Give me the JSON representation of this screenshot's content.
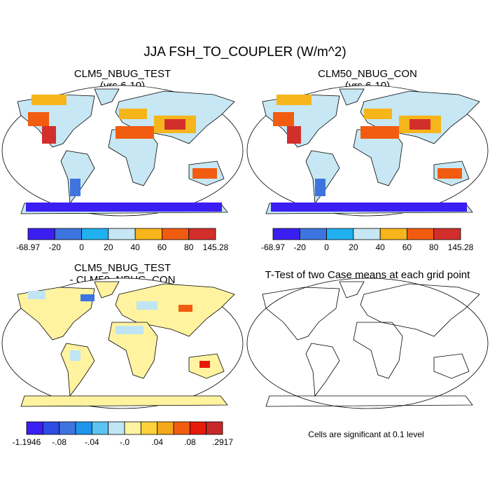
{
  "title": "JJA FSH_TO_COUPLER (W/m^2)",
  "panels": [
    {
      "title": "CLM5_NBUG_TEST",
      "subtitle": "(yrs 6-10)",
      "colorbar": {
        "labels": [
          "-68.97",
          "-20",
          "0",
          "20",
          "40",
          "60",
          "80",
          "145.28"
        ],
        "colors": [
          "#3b1ff2",
          "#3d74df",
          "#20b0f0",
          "#c6e7f3",
          "#f6b51b",
          "#f25c10",
          "#d22f2c"
        ]
      }
    },
    {
      "title": "CLM50_NBUG_CON",
      "subtitle": "(yrs 6-10)",
      "colorbar": {
        "labels": [
          "-68.97",
          "-20",
          "0",
          "20",
          "40",
          "60",
          "80",
          "145.28"
        ],
        "colors": [
          "#3b1ff2",
          "#3d74df",
          "#20b0f0",
          "#c6e7f3",
          "#f6b51b",
          "#f25c10",
          "#d22f2c"
        ]
      }
    },
    {
      "title": "CLM5_NBUG_TEST",
      "subtitle": "- CLM50_NBUG_CON",
      "colorbar": {
        "labels": [
          "-1.1946",
          "-.08",
          "-.04",
          "-.0",
          ".04",
          ".08",
          ".2917"
        ],
        "colors": [
          "#3b1ff2",
          "#2f4be6",
          "#3d74df",
          "#1f95ee",
          "#5cc3f2",
          "#bfe5f4",
          "#fff3a0",
          "#fdd23a",
          "#f6a81b",
          "#f25c10",
          "#e81a0c",
          "#c8282a"
        ]
      }
    },
    {
      "title": "T-Test of two Case means at each grid point",
      "caption": "Cells are significant at 0.1 level"
    }
  ]
}
